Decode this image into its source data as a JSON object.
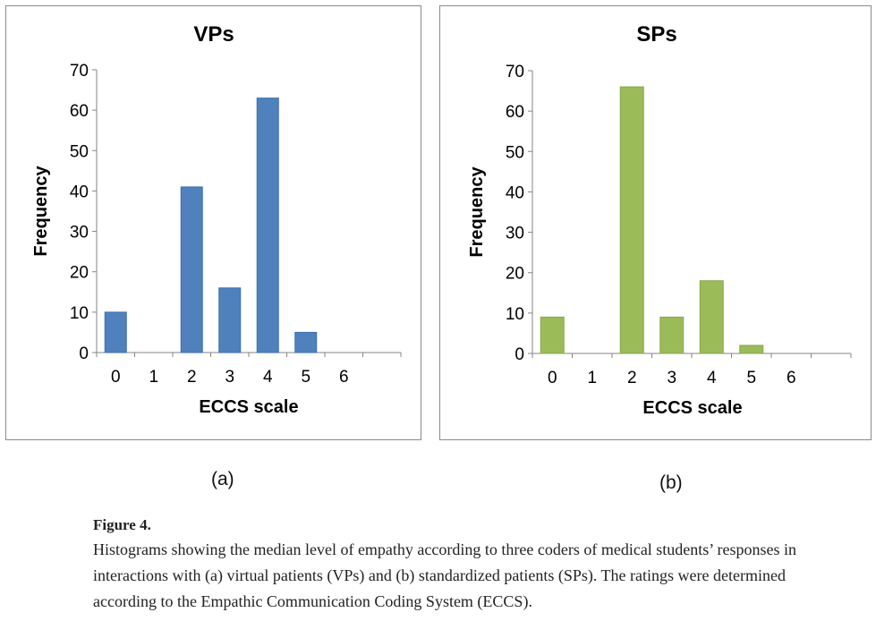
{
  "chart_data": [
    {
      "type": "bar",
      "title": "VPs",
      "xlabel": "ECCS scale",
      "ylabel": "Frequency",
      "categories": [
        "0",
        "1",
        "2",
        "3",
        "4",
        "5",
        "6"
      ],
      "values": [
        10,
        0,
        41,
        16,
        63,
        5,
        0
      ],
      "ylim": [
        0,
        70
      ],
      "yticks": [
        0,
        10,
        20,
        30,
        40,
        50,
        60,
        70
      ],
      "grid": false,
      "legend": "none",
      "color": "#4f81bd",
      "edge_color": "#3d6fae"
    },
    {
      "type": "bar",
      "title": "SPs",
      "xlabel": "ECCS scale",
      "ylabel": "Frequency",
      "categories": [
        "0",
        "1",
        "2",
        "3",
        "4",
        "5",
        "6"
      ],
      "values": [
        9,
        0,
        66,
        9,
        18,
        2,
        0
      ],
      "ylim": [
        0,
        70
      ],
      "yticks": [
        0,
        10,
        20,
        30,
        40,
        50,
        60,
        70
      ],
      "grid": false,
      "legend": "none",
      "color": "#9bbb59",
      "edge_color": "#86a84a"
    }
  ],
  "panel_labels": [
    "(a)",
    "(b)"
  ],
  "caption": {
    "figure": "Figure 4.",
    "text": "Histograms showing the median level of empathy according to three coders of medical students’ responses in interactions with (a) virtual patients (VPs) and (b) standardized patients (SPs). The ratings were determined according to the Empathic Communication Coding System (ECCS)."
  }
}
